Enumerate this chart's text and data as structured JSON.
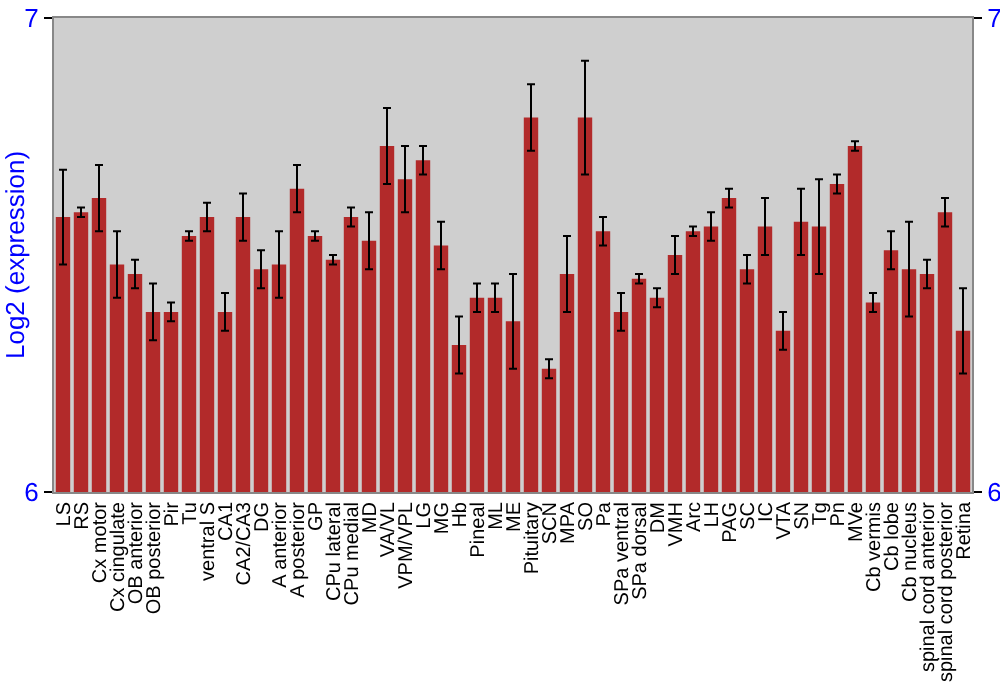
{
  "chart_data": {
    "type": "bar",
    "ylabel": "Log2 (expression)",
    "categories": [
      "LS",
      "RS",
      "Cx motor",
      "Cx cingulate",
      "OB anterior",
      "OB posterior",
      "Pir",
      "Tu",
      "ventral S",
      "CA1",
      "CA2/CA3",
      "DG",
      "A anterior",
      "A posterior",
      "GP",
      "CPu lateral",
      "CPu medial",
      "MD",
      "VA/VL",
      "VPM/VPL",
      "LG",
      "MG",
      "Hb",
      "Pineal",
      "ML",
      "ME",
      "Pituitary",
      "SCN",
      "MPA",
      "SO",
      "Pa",
      "SPa ventral",
      "SPa dorsal",
      "DM",
      "VMH",
      "Arc",
      "LH",
      "PAG",
      "SC",
      "IC",
      "VTA",
      "SN",
      "Tg",
      "Pn",
      "MVe",
      "Cb vermis",
      "Cb lobe",
      "Cb nucleus",
      "spinal cord anterior",
      "spinal cord posterior",
      "Retina"
    ],
    "values": [
      6.58,
      6.59,
      6.62,
      6.48,
      6.46,
      6.38,
      6.38,
      6.54,
      6.58,
      6.38,
      6.58,
      6.47,
      6.48,
      6.64,
      6.54,
      6.49,
      6.58,
      6.53,
      6.73,
      6.66,
      6.7,
      6.52,
      6.31,
      6.41,
      6.41,
      6.36,
      6.79,
      6.26,
      6.46,
      6.79,
      6.55,
      6.38,
      6.45,
      6.41,
      6.5,
      6.55,
      6.56,
      6.62,
      6.47,
      6.56,
      6.34,
      6.57,
      6.56,
      6.65,
      6.73,
      6.4,
      6.51,
      6.47,
      6.46,
      6.59,
      6.34
    ],
    "errors": [
      0.1,
      0.01,
      0.07,
      0.07,
      0.03,
      0.06,
      0.02,
      0.01,
      0.03,
      0.04,
      0.05,
      0.04,
      0.07,
      0.05,
      0.01,
      0.01,
      0.02,
      0.06,
      0.08,
      0.07,
      0.03,
      0.05,
      0.06,
      0.03,
      0.03,
      0.1,
      0.07,
      0.02,
      0.08,
      0.12,
      0.03,
      0.04,
      0.01,
      0.02,
      0.04,
      0.01,
      0.03,
      0.02,
      0.03,
      0.06,
      0.04,
      0.07,
      0.1,
      0.02,
      0.01,
      0.02,
      0.04,
      0.1,
      0.03,
      0.03,
      0.09
    ],
    "color": "#b22a2a",
    "ylim": [
      6,
      7
    ],
    "yticks": [
      6,
      7
    ],
    "y2lim": [
      6,
      7
    ],
    "y2ticks": [
      6,
      7
    ],
    "grid": false
  }
}
